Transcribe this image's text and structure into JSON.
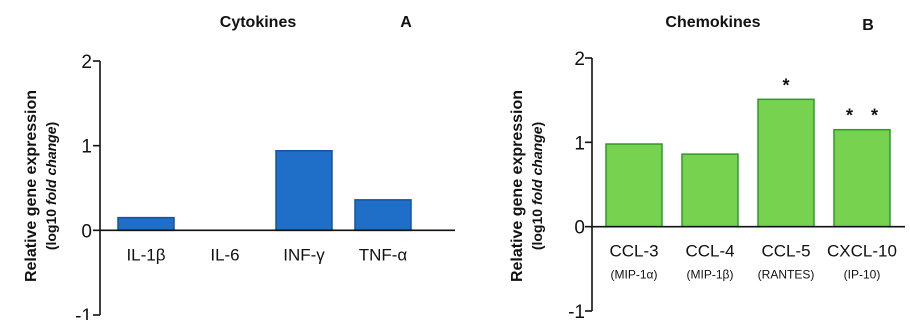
{
  "chart_data": [
    {
      "type": "bar",
      "title": "Cytokines",
      "panel_label": "A",
      "ylabel": "Relative gene expression",
      "ylabel_line2": "(log10 fold change)",
      "ylim": [
        -1,
        2
      ],
      "yticks": [
        -1,
        0,
        1,
        2
      ],
      "categories": [
        "IL-1β",
        "IL-6",
        "INF-γ",
        "TNF-α"
      ],
      "subcategories": [
        "",
        "",
        "",
        ""
      ],
      "values": [
        0.15,
        0.0,
        0.94,
        0.36
      ],
      "annotations": [
        "",
        "",
        "",
        ""
      ],
      "bar_color": "#1f6fc9",
      "bar_edge_color": "#1553a0",
      "grid": false
    },
    {
      "type": "bar",
      "title": "Chemokines",
      "panel_label": "B",
      "ylabel": "Relative gene expression",
      "ylabel_line2": "(log10 fold change)",
      "ylim": [
        -1,
        2
      ],
      "yticks": [
        -1,
        0,
        1,
        2
      ],
      "categories": [
        "CCL-3",
        "CCL-4",
        "CCL-5",
        "CXCL-10"
      ],
      "subcategories": [
        "(MIP-1α)",
        "(MIP-1β)",
        "(RANTES)",
        "(IP-10)"
      ],
      "values": [
        0.98,
        0.86,
        1.51,
        1.15
      ],
      "annotations": [
        "",
        "",
        "*",
        "* *"
      ],
      "bar_color": "#77d24f",
      "bar_edge_color": "#2e9a2a",
      "grid": false
    }
  ]
}
